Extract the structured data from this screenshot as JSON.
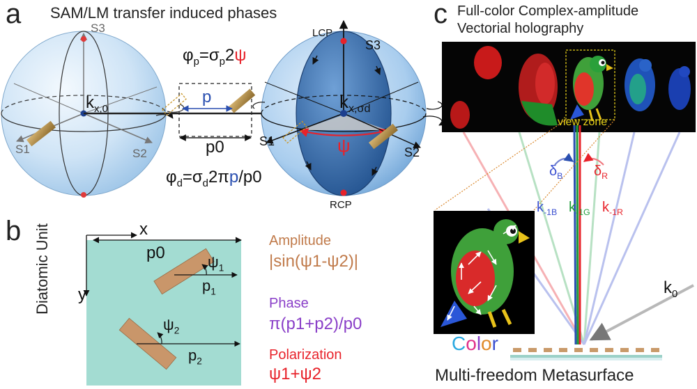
{
  "panel_a": {
    "letter": "a",
    "title": "SAM/LM transfer induced phases",
    "left_sphere": {
      "s3": "S3",
      "s1": "S1",
      "s2": "S2",
      "k_label": "k",
      "k_sub": "x,0"
    },
    "right_sphere": {
      "lcp": "LCP",
      "rcp": "RCP",
      "s3": "S3",
      "s1": "S1",
      "s2": "S2",
      "k_label": "k",
      "k_sub": "x,σd",
      "psi": "ψ"
    },
    "eq_geometric": {
      "lhs": "φ",
      "sub_p": "p",
      "mid": "=σ",
      "sub_p2": "p",
      "num": "2",
      "psi": "ψ"
    },
    "period_p": "p",
    "period_p0": "p0",
    "eq_detour": {
      "lhs": "φ",
      "sub_d": "d",
      "mid": "=σ",
      "sub_d2": "d",
      "a": "2π",
      "p": "p",
      "tail": "/p0"
    }
  },
  "panel_b": {
    "letter": "b",
    "side_label": "Diatomic Unit",
    "axis_x": "x",
    "axis_y": "y",
    "p0": "p0",
    "psi1": "ψ",
    "psi1_sub": "1",
    "p1": "p",
    "p1_sub": "1",
    "psi2": "ψ",
    "psi2_sub": "2",
    "p2": "p",
    "p2_sub": "2",
    "amplitude_title": "Amplitude",
    "amplitude_formula": "|sin(ψ1-ψ2)|",
    "phase_title": "Phase",
    "phase_formula": "π(p1+p2)/p0",
    "polarization_title": "Polarization",
    "polarization_formula": "ψ1+ψ2"
  },
  "panel_c": {
    "letter": "c",
    "title_line1": "Full-color Complex-amplitude",
    "title_line2": "Vectorial holography",
    "view_zone": "view zone",
    "delta_b": "δ",
    "delta_b_sub": "B",
    "delta_r": "δ",
    "delta_r_sub": "R",
    "k_b": "k",
    "k_b_sub": "-1B",
    "k_g": "k",
    "k_g_sub": "-1G",
    "k_r": "k",
    "k_r_sub": "-1R",
    "k0": "k",
    "k0_sub": "0",
    "color_word": [
      "C",
      "o",
      "l",
      "o",
      "r"
    ],
    "bottom_label": "Multi-freedom Metasurface"
  },
  "colors": {
    "sphere_light": "#cfe6f7",
    "sphere_dark": "#2f6aa8",
    "unit_cell": "#9fdcd0",
    "bar": "#b58a5a",
    "red": "#e8222a",
    "blue": "#2a4fb0",
    "green": "#1f9d3a",
    "purple": "#8a3fc8",
    "amplitude_brown": "#c07a4a"
  }
}
